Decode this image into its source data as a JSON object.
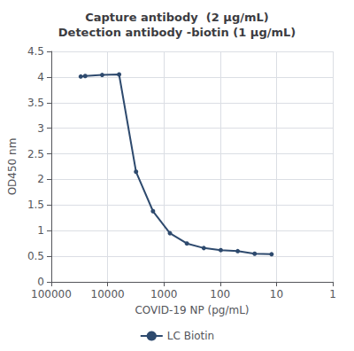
{
  "chart_data": {
    "type": "line",
    "title": "Capture antibody  (2 μg/mL)\nDetection antibody -biotin (1 μg/mL)",
    "x_label": "COVID-19 NP (pg/mL)",
    "y_label": "OD450 nm",
    "x": [
      30000,
      25000,
      12500,
      6250,
      3125,
      1562.5,
      781.25,
      390.625,
      195.3125,
      97.65625,
      48.828125,
      24.4140625,
      12.20703125
    ],
    "series": [
      {
        "name": "LC Biotin",
        "color": "#2e4a6e",
        "marker": "circle",
        "line_style": "solid",
        "values": [
          4.01,
          4.02,
          4.04,
          4.05,
          2.15,
          1.38,
          0.95,
          0.75,
          0.66,
          0.62,
          0.6,
          0.55,
          0.54
        ]
      }
    ],
    "log": "x",
    "xlim": [
      100000,
      1
    ],
    "xticks": [
      100000,
      10000,
      1000,
      100,
      10,
      1
    ],
    "ylim": [
      0,
      4.5
    ],
    "yticks": [
      0,
      0.5,
      1,
      1.5,
      2,
      2.5,
      3,
      3.5,
      4,
      4.5
    ],
    "grid": true,
    "legend": "bottom"
  }
}
